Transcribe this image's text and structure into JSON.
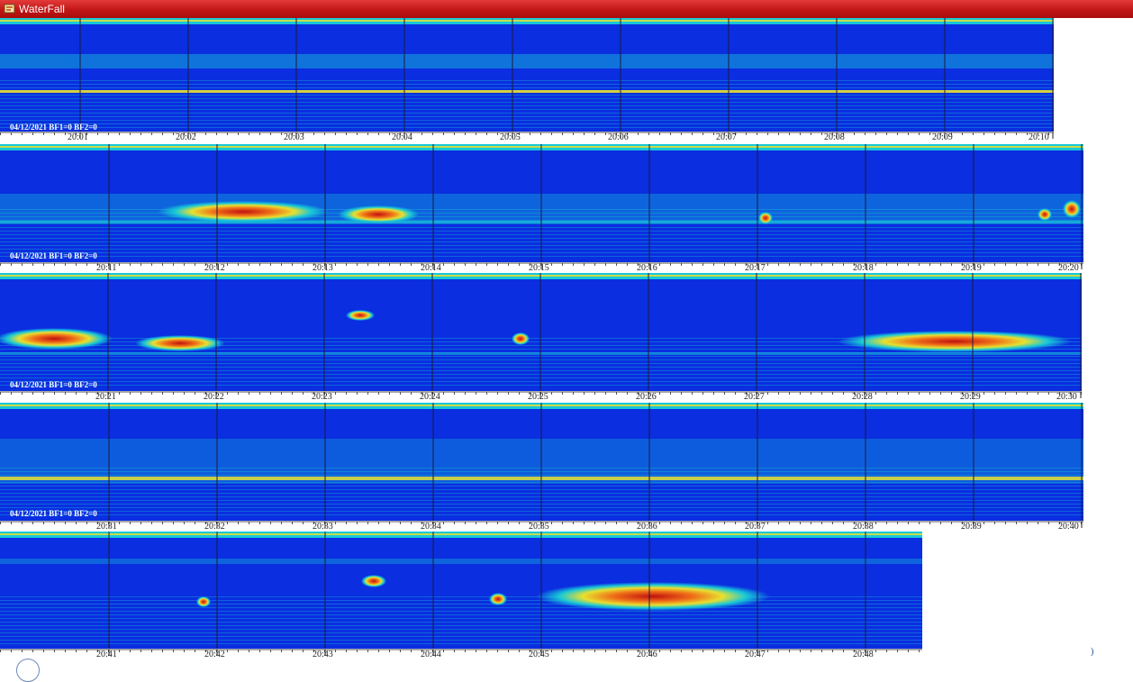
{
  "window": {
    "title": "WaterFall",
    "icon": "waterfall-app-icon"
  },
  "colors": {
    "low": "#0a2ee0",
    "mid": "#18c8d8",
    "high": "#e8e030",
    "peak": "#c01010",
    "titlebar": "#c11616",
    "gridline": "#1a1a40"
  },
  "panels": [
    {
      "status": "04/12/2021 BF1=0 BF2=0",
      "ticks": [
        "20:01",
        "20:02",
        "20:03",
        "20:04",
        "20:05",
        "20:06",
        "20:07",
        "20:08",
        "20:09",
        "20:10"
      ]
    },
    {
      "status": "04/12/2021 BF1=0 BF2=0",
      "ticks": [
        "20:11",
        "20:12",
        "20:13",
        "20:14",
        "20:15",
        "20:16",
        "20:17",
        "20:18",
        "20:19",
        "20:20"
      ]
    },
    {
      "status": "04/12/2021 BF1=0 BF2=0",
      "ticks": [
        "20:21",
        "20:22",
        "20:23",
        "20:24",
        "20:25",
        "20:26",
        "20:27",
        "20:28",
        "20:29",
        "20:30"
      ]
    },
    {
      "status": "04/12/2021 BF1=0 BF2=0",
      "ticks": [
        "20:31",
        "20:32",
        "20:33",
        "20:34",
        "20:35",
        "20:36",
        "20:37",
        "20:38",
        "20:39",
        "20:40"
      ]
    },
    {
      "status": "",
      "ticks": [
        "20:41",
        "20:42",
        "20:43",
        "20:44",
        "20:45",
        "20:46",
        "20:47",
        "20:48"
      ]
    }
  ],
  "corner_glyph": ")"
}
